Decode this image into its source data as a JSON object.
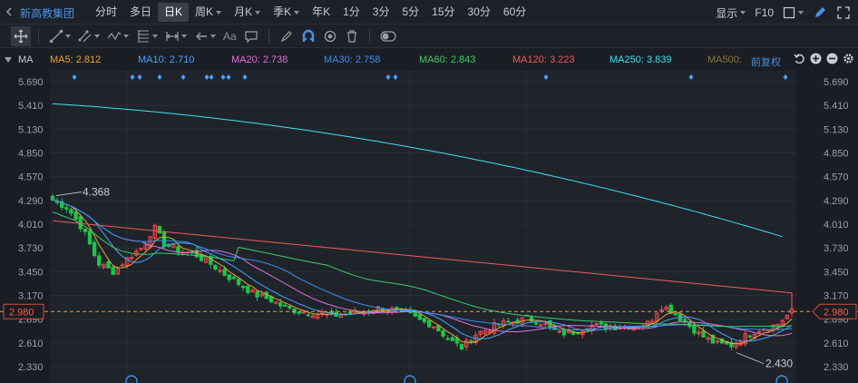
{
  "stock": {
    "name": "新高教集团"
  },
  "toolbar": {
    "periods": [
      "分时",
      "多日",
      "日K",
      "周K",
      "月K",
      "季K",
      "年K",
      "1分",
      "3分",
      "5分",
      "15分",
      "30分",
      "60分"
    ],
    "active_period": "日K",
    "display_label": "显示",
    "f10_label": "F10"
  },
  "drawbar": {
    "text_tool_label": "Aa"
  },
  "ma_legend": {
    "title": "MA",
    "items": [
      {
        "label": "MA5: 2.812",
        "color": "#e8a23a"
      },
      {
        "label": "MA10: 2.710",
        "color": "#4aa3ff"
      },
      {
        "label": "MA20: 2.738",
        "color": "#e070e0"
      },
      {
        "label": "MA30: 2.758",
        "color": "#3a8ef0"
      },
      {
        "label": "MA60: 2.843",
        "color": "#3dcc6c"
      },
      {
        "label": "MA120: 3.223",
        "color": "#f05a5a"
      },
      {
        "label": "MA250: 3.839",
        "color": "#43e0f0"
      },
      {
        "label": "MA500:",
        "color": "#8a7a3a"
      }
    ],
    "adjust_label": "前复权"
  },
  "chart_data": {
    "type": "candlestick",
    "y_ticks": [
      "5.690",
      "5.410",
      "5.130",
      "4.850",
      "4.570",
      "4.290",
      "4.010",
      "3.730",
      "3.450",
      "3.170",
      "2.890",
      "2.610",
      "2.330"
    ],
    "ylim": [
      2.33,
      5.69
    ],
    "current_price": "2.980",
    "high_marker": "4.368",
    "low_marker": "2.430",
    "colors": {
      "up": "#f04848",
      "down": "#1fc44a",
      "axis_text": "#9aa0aa",
      "price_line": "#e8a23a",
      "price_tag": "#d84a3a"
    },
    "candles_ohlc_approx": "daily candles descending from about 4.37 to 2.43, closing at 2.980",
    "ma_lines": [
      {
        "name": "MA5",
        "color": "#e8a23a"
      },
      {
        "name": "MA10",
        "color": "#4aa3ff"
      },
      {
        "name": "MA20",
        "color": "#e070e0"
      },
      {
        "name": "MA30",
        "color": "#3a8ef0"
      },
      {
        "name": "MA60",
        "color": "#3dcc6c"
      },
      {
        "name": "MA120",
        "color": "#f05a5a"
      },
      {
        "name": "MA250",
        "color": "#43e0f0"
      }
    ]
  }
}
